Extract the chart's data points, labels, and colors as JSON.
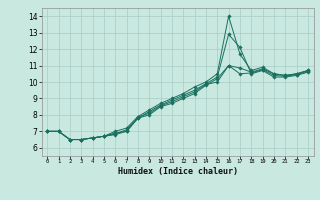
{
  "title": "",
  "xlabel": "Humidex (Indice chaleur)",
  "ylabel": "",
  "bg_color": "#c8e8e0",
  "grid_color": "#a8ccc8",
  "line_color": "#1a7060",
  "xlim": [
    -0.5,
    23.5
  ],
  "ylim": [
    5.5,
    14.5
  ],
  "xticks": [
    0,
    1,
    2,
    3,
    4,
    5,
    6,
    7,
    8,
    9,
    10,
    11,
    12,
    13,
    14,
    15,
    16,
    17,
    18,
    19,
    20,
    21,
    22,
    23
  ],
  "yticks": [
    6,
    7,
    8,
    9,
    10,
    11,
    12,
    13,
    14
  ],
  "lines": [
    {
      "x": [
        0,
        1,
        2,
        3,
        4,
        5,
        6,
        7,
        8,
        9,
        10,
        11,
        12,
        13,
        14,
        15,
        16,
        17,
        18,
        19,
        20,
        21,
        22,
        23
      ],
      "y": [
        7.0,
        7.0,
        6.5,
        6.5,
        6.6,
        6.7,
        6.8,
        7.0,
        7.8,
        8.0,
        8.5,
        8.7,
        9.0,
        9.3,
        9.8,
        10.2,
        11.0,
        10.85,
        10.6,
        10.8,
        10.5,
        10.4,
        10.5,
        10.7
      ]
    },
    {
      "x": [
        0,
        1,
        2,
        3,
        4,
        5,
        6,
        7,
        8,
        9,
        10,
        11,
        12,
        13,
        14,
        15,
        16,
        17,
        18,
        19,
        20,
        21,
        22,
        23
      ],
      "y": [
        7.0,
        7.0,
        6.5,
        6.5,
        6.6,
        6.7,
        7.0,
        7.2,
        7.9,
        8.3,
        8.7,
        9.0,
        9.3,
        9.7,
        10.0,
        10.5,
        14.0,
        11.7,
        10.7,
        10.9,
        10.5,
        10.4,
        10.5,
        10.7
      ]
    },
    {
      "x": [
        0,
        1,
        2,
        3,
        4,
        5,
        6,
        7,
        8,
        9,
        10,
        11,
        12,
        13,
        14,
        15,
        16,
        17,
        18,
        19,
        20,
        21,
        22,
        23
      ],
      "y": [
        7.0,
        7.0,
        6.5,
        6.5,
        6.6,
        6.7,
        6.9,
        7.0,
        7.8,
        8.2,
        8.6,
        8.9,
        9.2,
        9.5,
        9.9,
        10.3,
        12.9,
        12.1,
        10.5,
        10.7,
        10.3,
        10.3,
        10.4,
        10.6
      ]
    },
    {
      "x": [
        0,
        1,
        2,
        3,
        4,
        5,
        6,
        7,
        8,
        9,
        10,
        11,
        12,
        13,
        14,
        15,
        16,
        17,
        18,
        19,
        20,
        21,
        22,
        23
      ],
      "y": [
        7.0,
        7.0,
        6.5,
        6.5,
        6.6,
        6.7,
        6.85,
        7.1,
        7.85,
        8.1,
        8.55,
        8.8,
        9.1,
        9.4,
        9.85,
        10.0,
        11.0,
        10.5,
        10.55,
        10.75,
        10.4,
        10.35,
        10.45,
        10.65
      ]
    }
  ]
}
